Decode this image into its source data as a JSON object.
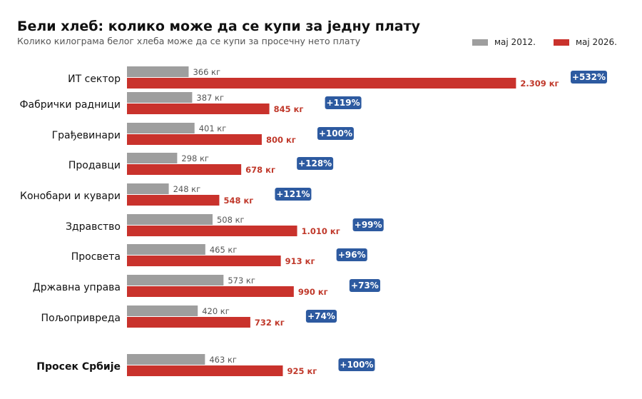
{
  "title": "Бели хлеб: колико може да се купи за једну плату",
  "subtitle": "Колико килограма белог хлеба може да се купи за просечну нето плату",
  "colors": {
    "old": "#9e9e9e",
    "new": "#c9322c",
    "badge": "#2d5aa0"
  },
  "chart_data": {
    "type": "bar",
    "orientation": "horizontal",
    "title": "Бели хлеб: колико може да се купи за једну плату",
    "subtitle": "Колико килограма белог хлеба може да се купи за просечну нето плату",
    "legend_position": "top-right",
    "grid": false,
    "categories": [
      "ИТ сектор",
      "Фабрички радници",
      "Грађевинари",
      "Продавци",
      "Конобари и кувари",
      "Здравство",
      "Просвета",
      "Државна управа",
      "Пољопривреда",
      "Просек Србије"
    ],
    "series": [
      {
        "name": "мај 2012.",
        "values": [
          366,
          387,
          401,
          298,
          248,
          508,
          465,
          573,
          420,
          463
        ],
        "labels": [
          "366 кг",
          "387 кг",
          "401 кг",
          "298 кг",
          "248 кг",
          "508 кг",
          "465 кг",
          "573 кг",
          "420 кг",
          "463 кг"
        ]
      },
      {
        "name": "мај 2026.",
        "values": [
          2309,
          845,
          800,
          678,
          548,
          1010,
          913,
          990,
          732,
          925
        ],
        "labels": [
          "2.309 кг",
          "845 кг",
          "800 кг",
          "678 кг",
          "548 кг",
          "1.010 кг",
          "913 кг",
          "990 кг",
          "732 кг",
          "925 кг"
        ]
      }
    ],
    "change_labels": [
      "+532%",
      "+119%",
      "+100%",
      "+128%",
      "+121%",
      "+99%",
      "+96%",
      "+73%",
      "+74%",
      "+100%"
    ],
    "emphasized_category": "Просек Србије"
  }
}
